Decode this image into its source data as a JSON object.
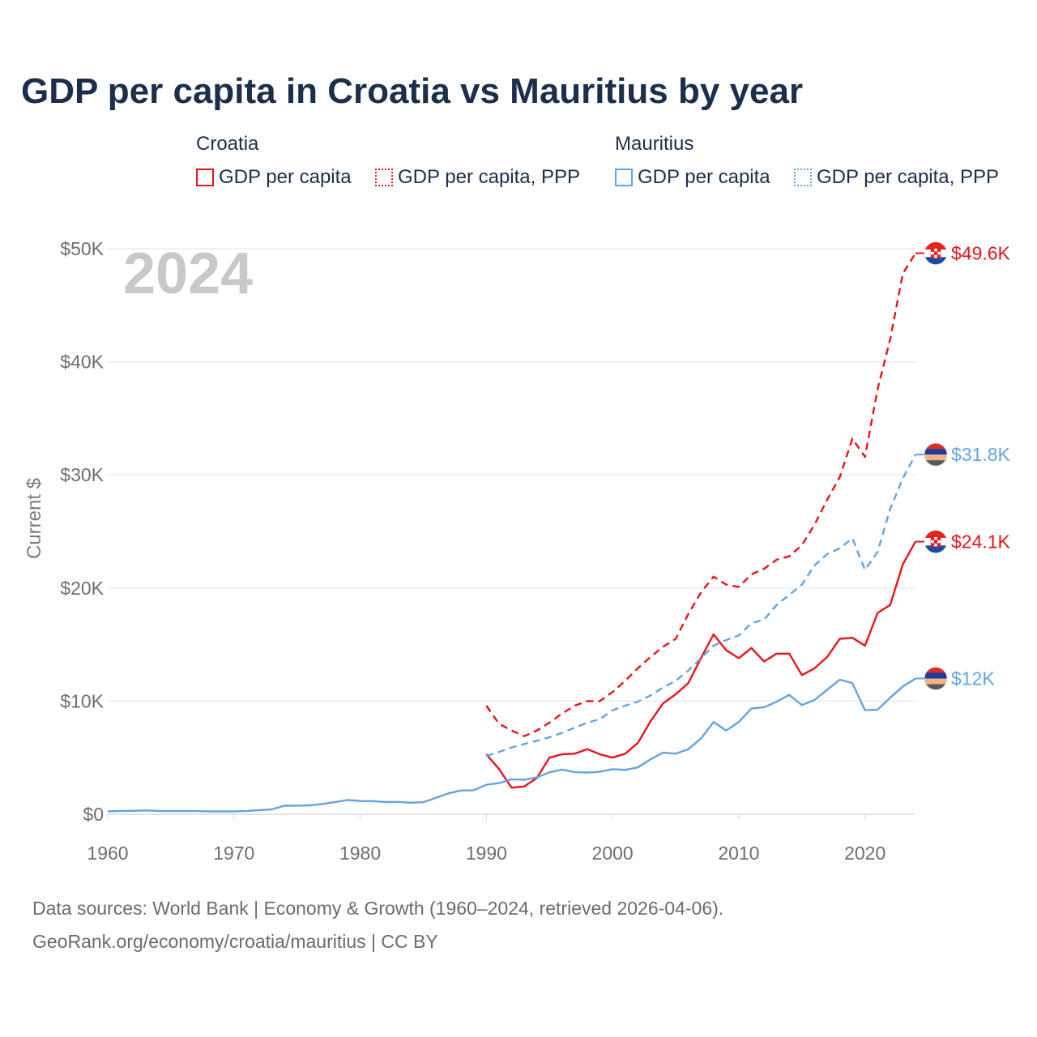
{
  "title": "GDP per capita in Croatia vs Mauritius by year",
  "legend": {
    "groups": [
      {
        "name": "Croatia",
        "color": "#e8141a",
        "items": [
          {
            "label": "GDP per capita",
            "style": "solid"
          },
          {
            "label": "GDP per capita, PPP",
            "style": "dotted"
          }
        ]
      },
      {
        "name": "Mauritius",
        "color": "#62a4e2",
        "items": [
          {
            "label": "GDP per capita",
            "style": "solid"
          },
          {
            "label": "GDP per capita, PPP",
            "style": "dotted"
          }
        ]
      }
    ]
  },
  "footer": {
    "line1": "Data sources: World Bank | Economy & Growth (1960–2024, retrieved 2026-04-06).",
    "line2": "GeoRank.org/economy/croatia/mauritius | CC BY"
  },
  "chart_data": {
    "type": "line",
    "title": "GDP per capita in Croatia vs Mauritius by year",
    "xlabel": "",
    "ylabel": "Current $",
    "year_label": "2024",
    "xlim": [
      1960,
      2024
    ],
    "ylim": [
      0,
      50000
    ],
    "x_ticks": [
      1960,
      1970,
      1980,
      1990,
      2000,
      2010,
      2020
    ],
    "y_ticks": [
      0,
      10000,
      20000,
      30000,
      40000,
      50000
    ],
    "y_tick_labels": [
      "$0",
      "$10K",
      "$20K",
      "$30K",
      "$40K",
      "$50K"
    ],
    "grid": true,
    "series": [
      {
        "name": "Croatia GDP per capita",
        "country": "Croatia",
        "color": "#e8141a",
        "dash": "solid",
        "end_label": "$24.1K",
        "x": [
          1990,
          1991,
          1992,
          1993,
          1994,
          1995,
          1996,
          1997,
          1998,
          1999,
          2000,
          2001,
          2002,
          2003,
          2004,
          2005,
          2006,
          2007,
          2008,
          2009,
          2010,
          2011,
          2012,
          2013,
          2014,
          2015,
          2016,
          2017,
          2018,
          2019,
          2020,
          2021,
          2022,
          2023,
          2024
        ],
        "values": [
          5300,
          4000,
          2350,
          2450,
          3200,
          5000,
          5300,
          5350,
          5750,
          5300,
          5000,
          5350,
          6300,
          8200,
          9800,
          10600,
          11600,
          13800,
          15900,
          14500,
          13800,
          14700,
          13500,
          14200,
          14200,
          12300,
          12900,
          13900,
          15500,
          15600,
          14900,
          17800,
          18500,
          22100,
          24100
        ]
      },
      {
        "name": "Croatia GDP per capita, PPP",
        "country": "Croatia",
        "color": "#e8141a",
        "dash": "dashed",
        "end_label": "$49.6K",
        "x": [
          1990,
          1991,
          1992,
          1993,
          1994,
          1995,
          1996,
          1997,
          1998,
          1999,
          2000,
          2001,
          2002,
          2003,
          2004,
          2005,
          2006,
          2007,
          2008,
          2009,
          2010,
          2011,
          2012,
          2013,
          2014,
          2015,
          2016,
          2017,
          2018,
          2019,
          2020,
          2021,
          2022,
          2023,
          2024
        ],
        "values": [
          9600,
          8000,
          7400,
          6900,
          7400,
          8100,
          8900,
          9600,
          10000,
          10000,
          10800,
          11800,
          12900,
          13900,
          14800,
          15500,
          17700,
          19600,
          21000,
          20300,
          20100,
          21200,
          21700,
          22500,
          22800,
          23800,
          25600,
          27800,
          29800,
          33200,
          31600,
          37600,
          42000,
          47800,
          49600
        ]
      },
      {
        "name": "Mauritius GDP per capita",
        "country": "Mauritius",
        "color": "#62a4e2",
        "dash": "solid",
        "end_label": "$12K",
        "x": [
          1960,
          1961,
          1962,
          1963,
          1964,
          1965,
          1966,
          1967,
          1968,
          1969,
          1970,
          1971,
          1972,
          1973,
          1974,
          1975,
          1976,
          1977,
          1978,
          1979,
          1980,
          1981,
          1982,
          1983,
          1984,
          1985,
          1986,
          1987,
          1988,
          1989,
          1990,
          1991,
          1992,
          1993,
          1994,
          1995,
          1996,
          1997,
          1998,
          1999,
          2000,
          2001,
          2002,
          2003,
          2004,
          2005,
          2006,
          2007,
          2008,
          2009,
          2010,
          2011,
          2012,
          2013,
          2014,
          2015,
          2016,
          2017,
          2018,
          2019,
          2020,
          2021,
          2022,
          2023,
          2024
        ],
        "values": [
          260,
          290,
          300,
          340,
          290,
          280,
          280,
          280,
          250,
          240,
          250,
          280,
          350,
          430,
          750,
          760,
          780,
          900,
          1070,
          1250,
          1170,
          1150,
          1080,
          1090,
          1020,
          1060,
          1450,
          1850,
          2100,
          2120,
          2600,
          2750,
          3080,
          3050,
          3250,
          3700,
          3950,
          3720,
          3680,
          3750,
          3980,
          3920,
          4140,
          4850,
          5450,
          5350,
          5750,
          6690,
          8150,
          7400,
          8150,
          9350,
          9450,
          9950,
          10550,
          9650,
          10100,
          11000,
          11900,
          11600,
          9200,
          9250,
          10300,
          11300,
          12000
        ]
      },
      {
        "name": "Mauritius GDP per capita, PPP",
        "country": "Mauritius",
        "color": "#62a4e2",
        "dash": "dashed",
        "end_label": "$31.8K",
        "x": [
          1990,
          1991,
          1992,
          1993,
          1994,
          1995,
          1996,
          1997,
          1998,
          1999,
          2000,
          2001,
          2002,
          2003,
          2004,
          2005,
          2006,
          2007,
          2008,
          2009,
          2010,
          2011,
          2012,
          2013,
          2014,
          2015,
          2016,
          2017,
          2018,
          2019,
          2020,
          2021,
          2022,
          2023,
          2024
        ],
        "values": [
          5150,
          5500,
          5900,
          6200,
          6500,
          6800,
          7200,
          7650,
          8100,
          8400,
          9200,
          9600,
          9950,
          10500,
          11200,
          11800,
          12700,
          13800,
          14900,
          15400,
          15800,
          16900,
          17200,
          18500,
          19400,
          20300,
          22000,
          23000,
          23500,
          24400,
          21600,
          23200,
          27000,
          29700,
          31800
        ]
      }
    ]
  },
  "icons": [
    "croatia-flag-icon",
    "mauritius-flag-icon"
  ]
}
